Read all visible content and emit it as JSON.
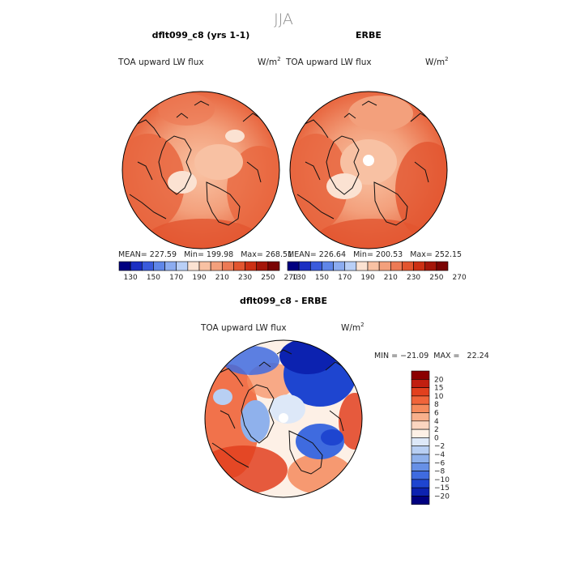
{
  "page_title": "JJA",
  "panels": [
    {
      "title": "dflt099_c8 (yrs 1-1)",
      "field_label": "TOA upward LW flux",
      "units": "W/m",
      "units_sup": "2",
      "stats": "MEAN= 227.59   Min= 199.98   Max= 268.51",
      "colorbar_colors": [
        "#000080",
        "#1b2fc2",
        "#3a5bdc",
        "#5f86e8",
        "#8cacf0",
        "#b9cff6",
        "#fbe2d2",
        "#f8c1a3",
        "#f3a07c",
        "#ec7a55",
        "#e2552f",
        "#cc3014",
        "#a4160a",
        "#7a0404"
      ],
      "colorbar_ticks": [
        "130",
        "150",
        "170",
        "190",
        "210",
        "230",
        "250",
        "270"
      ]
    },
    {
      "title": "ERBE",
      "field_label": "TOA upward LW flux",
      "units": "W/m",
      "units_sup": "2",
      "stats": "MEAN= 226.64   Min= 200.53   Max= 252.15",
      "colorbar_colors": [
        "#000080",
        "#1b2fc2",
        "#3a5bdc",
        "#5f86e8",
        "#8cacf0",
        "#b9cff6",
        "#fbe2d2",
        "#f8c1a3",
        "#f3a07c",
        "#ec7a55",
        "#e2552f",
        "#cc3014",
        "#a4160a",
        "#7a0404"
      ],
      "colorbar_ticks": [
        "130",
        "150",
        "170",
        "190",
        "210",
        "230",
        "250",
        "270"
      ]
    }
  ],
  "diff_panel": {
    "title": "dflt099_c8 - ERBE",
    "field_label": "TOA upward LW flux",
    "units": "W/m",
    "units_sup": "2",
    "minmax": "MIN = −21.09  MAX =   22.24",
    "colorbar_colors": [
      "#8b0000",
      "#c11f10",
      "#e2401e",
      "#f0643a",
      "#f58a5c",
      "#f8b08c",
      "#fbd5c0",
      "#fdf0e6",
      "#dde8f8",
      "#b8cff3",
      "#8fb1ec",
      "#6790e6",
      "#3f6bdf",
      "#1e45d0",
      "#0c22b0",
      "#000080"
    ],
    "colorbar_ticks": [
      "20",
      "15",
      "10",
      "8",
      "6",
      "4",
      "2",
      "0",
      "−2",
      "−4",
      "−6",
      "−8",
      "−10",
      "−15",
      "−20"
    ]
  }
}
